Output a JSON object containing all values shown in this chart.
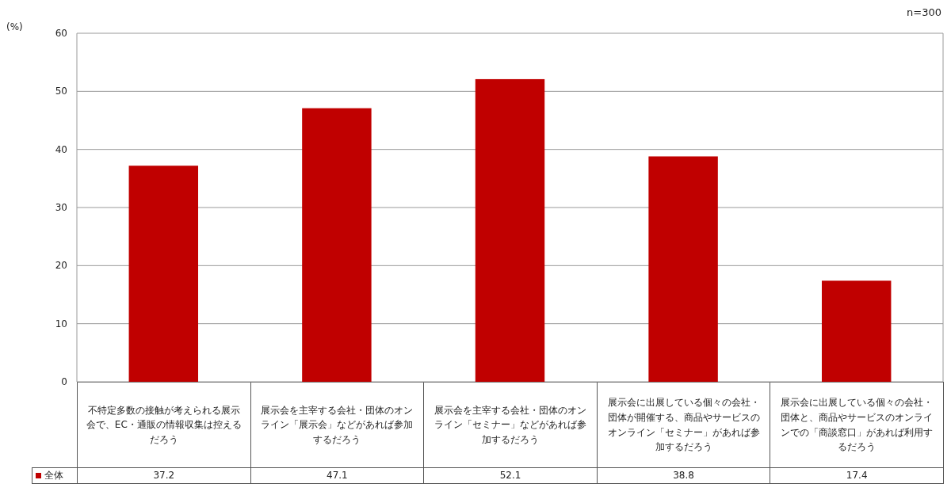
{
  "chart_data": {
    "type": "bar",
    "ylabel": "(%)",
    "annotations": [
      "n=300"
    ],
    "categories": [
      "不特定多数の接触が考えられる展示会で、EC・通販の情報収集は控えるだろう",
      "展示会を主宰する会社・団体のオンライン「展示会」などがあれば参加するだろう",
      "展示会を主宰する会社・団体のオンライン「セミナー」などがあれば参加するだろう",
      "展示会に出展している個々の会社・団体が開催する、商品やサービスのオンライン「セミナー」があれば参加するだろう",
      "展示会に出展している個々の会社・団体と、商品やサービスのオンラインでの「商談窓口」があれば利用するだろう"
    ],
    "series": [
      {
        "name": "全体",
        "color": "#c00000",
        "values": [
          37.2,
          47.1,
          52.1,
          38.8,
          17.4
        ]
      }
    ],
    "ylim": [
      0,
      60
    ],
    "yticks": [
      0,
      10,
      20,
      30,
      40,
      50,
      60
    ],
    "grid": "y",
    "data_labels": true,
    "legend": "bottom left"
  }
}
